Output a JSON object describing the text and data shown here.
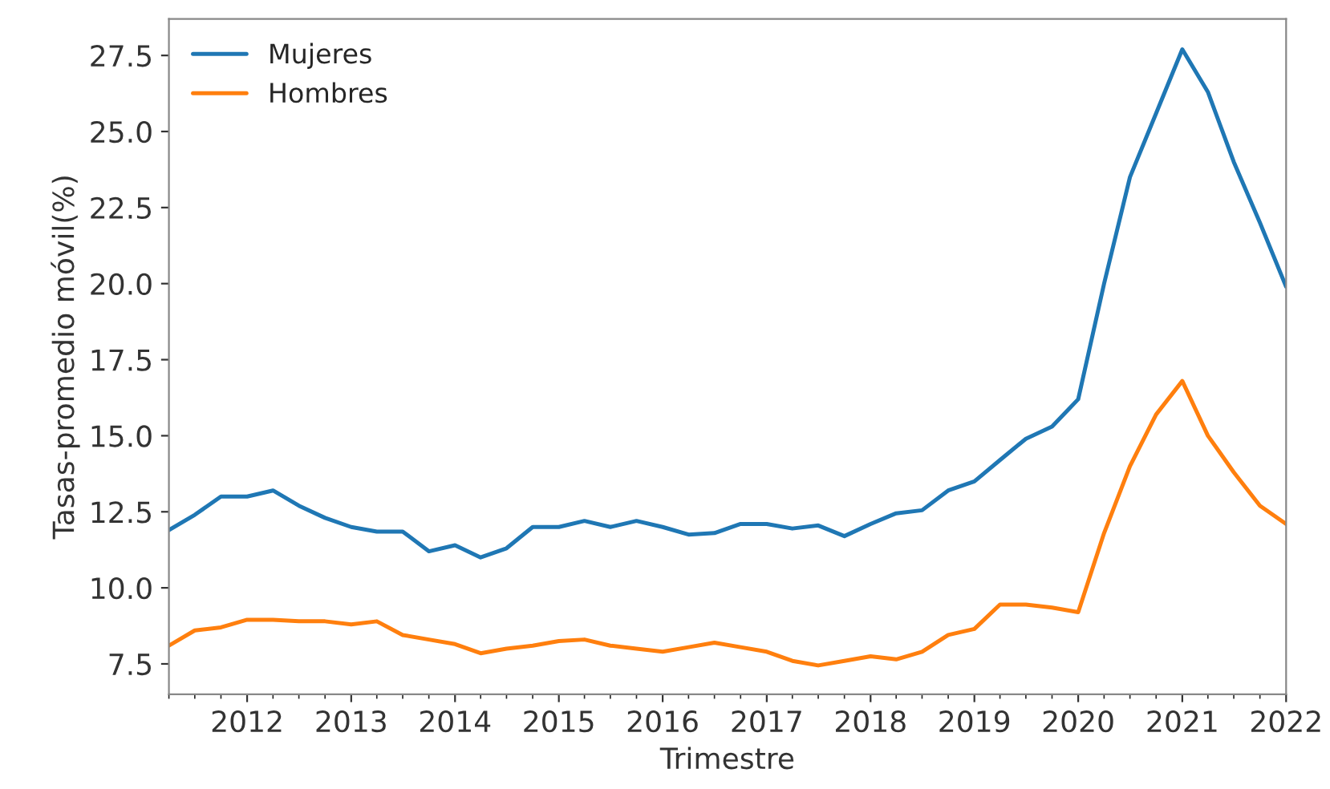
{
  "chart_data": {
    "type": "line",
    "xlabel": "Trimestre",
    "ylabel": "Tasas-promedio móvil(%)",
    "x": [
      "2011-04",
      "2011-07",
      "2011-10",
      "2012-01",
      "2012-04",
      "2012-07",
      "2012-10",
      "2013-01",
      "2013-04",
      "2013-07",
      "2013-10",
      "2014-01",
      "2014-04",
      "2014-07",
      "2014-10",
      "2015-01",
      "2015-04",
      "2015-07",
      "2015-10",
      "2016-01",
      "2016-04",
      "2016-07",
      "2016-10",
      "2017-01",
      "2017-04",
      "2017-07",
      "2017-10",
      "2018-01",
      "2018-04",
      "2018-07",
      "2018-10",
      "2019-01",
      "2019-04",
      "2019-07",
      "2019-10",
      "2020-01",
      "2020-04",
      "2020-07",
      "2020-10",
      "2021-01",
      "2021-04",
      "2021-07",
      "2021-10",
      "2022-01"
    ],
    "series": [
      {
        "name": "Mujeres",
        "color": "#1f77b4",
        "values": [
          11.9,
          12.4,
          13.0,
          13.0,
          13.2,
          12.7,
          12.3,
          12.0,
          11.85,
          11.85,
          11.2,
          11.4,
          11.0,
          11.3,
          12.0,
          12.0,
          12.2,
          12.0,
          12.2,
          12.0,
          11.75,
          11.8,
          12.1,
          12.1,
          11.95,
          12.05,
          11.7,
          12.1,
          12.45,
          12.55,
          13.2,
          13.5,
          14.2,
          14.9,
          15.3,
          16.2,
          20.0,
          23.5,
          25.6,
          27.7,
          26.3,
          24.0,
          22.0,
          19.9
        ]
      },
      {
        "name": "Hombres",
        "color": "#ff7f0e",
        "values": [
          8.1,
          8.6,
          8.7,
          8.95,
          8.95,
          8.9,
          8.9,
          8.8,
          8.9,
          8.45,
          8.3,
          8.15,
          7.85,
          8.0,
          8.1,
          8.25,
          8.3,
          8.1,
          8.0,
          7.9,
          8.05,
          8.2,
          8.05,
          7.9,
          7.6,
          7.45,
          7.6,
          7.75,
          7.65,
          7.9,
          8.45,
          8.65,
          9.45,
          9.45,
          9.35,
          9.2,
          11.8,
          14.0,
          15.7,
          16.8,
          15.0,
          13.8,
          12.7,
          12.1
        ]
      }
    ],
    "xlim": [
      "2011-04",
      "2022-01"
    ],
    "xticks": [
      "2012",
      "2013",
      "2014",
      "2015",
      "2016",
      "2017",
      "2018",
      "2019",
      "2020",
      "2021",
      "2022"
    ],
    "ylim": [
      6.5,
      28.7
    ],
    "yticks": [
      7.5,
      {
        "value": 10,
        "label": "10.0"
      },
      12.5,
      {
        "value": 15,
        "label": "15.0"
      },
      17.5,
      {
        "value": 20,
        "label": "20.0"
      },
      22.5,
      {
        "value": 25,
        "label": "25.0"
      },
      27.5
    ],
    "grid": false,
    "legend": "top left"
  }
}
